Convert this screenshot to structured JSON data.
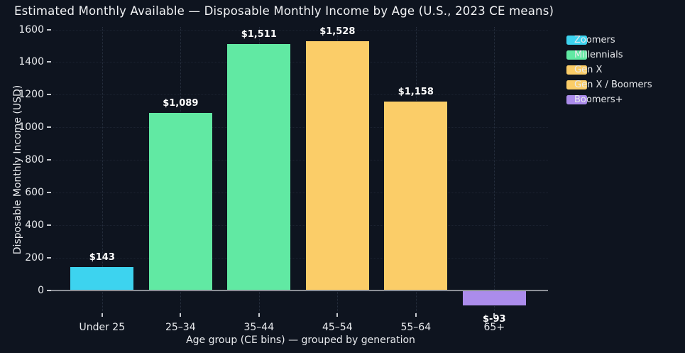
{
  "colors": {
    "background": "#0e141f",
    "title_text": "#f2f3f5",
    "axis_title_text": "#e9ebee",
    "tick_text": "#e8eaed",
    "value_label_text": "#ffffff",
    "legend_text": "#e8eaed",
    "tick_mark": "#c9ccd1",
    "zero_line": "#8b8f96"
  },
  "chart_data": {
    "type": "bar",
    "title": "Estimated Monthly Available — Disposable Monthly Income by Age (U.S., 2023 CE means)",
    "xlabel": "Age group (CE bins) — grouped by generation",
    "ylabel": "Disposable Monthly Income (USD)",
    "categories": [
      "Under 25",
      "25–34",
      "35–44",
      "45–54",
      "55–64",
      "65+"
    ],
    "values": [
      143,
      1089,
      1511,
      1528,
      1158,
      -93
    ],
    "value_labels": [
      "$143",
      "$1,089",
      "$1,511",
      "$1,528",
      "$1,158",
      "$-93"
    ],
    "bar_generations": [
      "Zoomers",
      "Millennials",
      "Millennials",
      "Gen X",
      "Gen X / Boomers",
      "Boomers+"
    ],
    "bar_colors": [
      "#3dd3ef",
      "#61e9a3",
      "#61e9a3",
      "#fbcd68",
      "#fbcd68",
      "#ab8ceb"
    ],
    "y_ticks": [
      0,
      200,
      400,
      600,
      800,
      1000,
      1200,
      1400,
      1600
    ],
    "ylim": [
      -130,
      1610
    ],
    "grid": true,
    "legend_position": "upper right",
    "legend": [
      {
        "label": "Zoomers",
        "color": "#3dd3ef"
      },
      {
        "label": "Millennials",
        "color": "#61e9a3"
      },
      {
        "label": "Gen X",
        "color": "#fbcd68"
      },
      {
        "label": "Gen X / Boomers",
        "color": "#fbcd68"
      },
      {
        "label": "Boomers+",
        "color": "#ab8ceb"
      }
    ]
  }
}
